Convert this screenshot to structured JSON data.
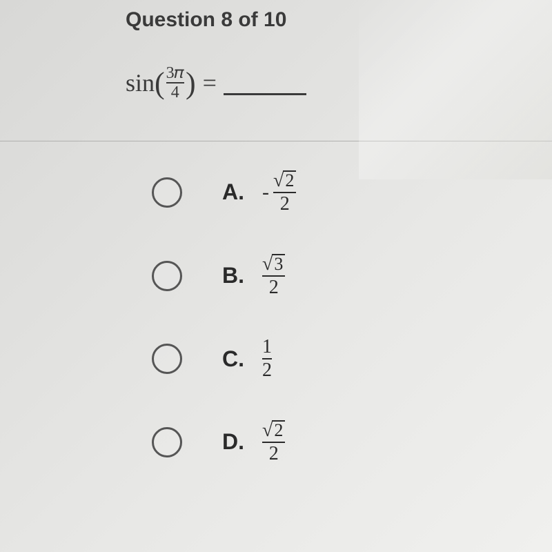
{
  "header": {
    "question_label": "Question 8 of 10"
  },
  "question": {
    "func": "sin",
    "arg_numerator": "3𝜋",
    "arg_denominator": "4",
    "equals": "="
  },
  "options": [
    {
      "letter": "A.",
      "negative": true,
      "num_type": "sqrt",
      "num_arg": "2",
      "den": "2"
    },
    {
      "letter": "B.",
      "negative": false,
      "num_type": "sqrt",
      "num_arg": "3",
      "den": "2"
    },
    {
      "letter": "C.",
      "negative": false,
      "num_type": "plain",
      "num_arg": "1",
      "den": "2"
    },
    {
      "letter": "D.",
      "negative": false,
      "num_type": "sqrt",
      "num_arg": "2",
      "den": "2"
    }
  ],
  "style": {
    "text_color": "#3a3a3a",
    "radio_border": "#555555",
    "divider_color": "#b0b0ae"
  }
}
